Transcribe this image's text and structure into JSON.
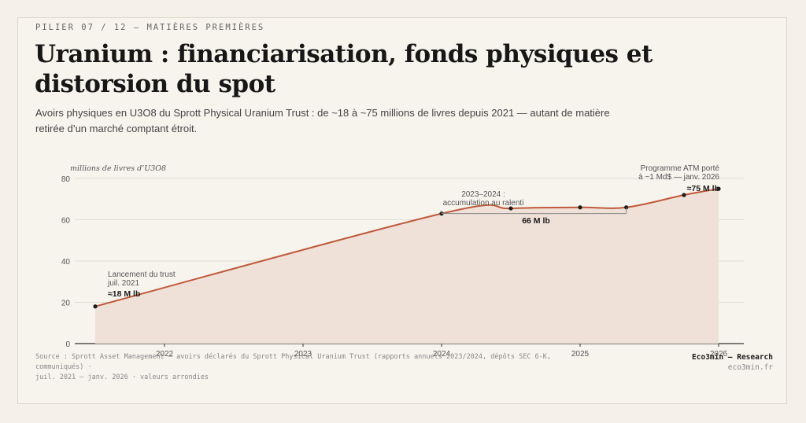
{
  "header": {
    "kicker": "PILIER 07 / 12 — MATIÈRES PREMIÈRES",
    "title": "Uranium : financiarisation, fonds physiques et distorsion du spot",
    "subtitle": "Avoirs physiques en U3O8 du Sprott Physical Uranium Trust : de ~18 à ~75 millions de livres depuis 2021 — autant de matière retirée d’un marché comptant étroit."
  },
  "chart_data": {
    "type": "area",
    "ylabel": "millions de livres d’U3O8",
    "ylim": [
      0,
      80
    ],
    "yticks": [
      0,
      20,
      40,
      60,
      80
    ],
    "xticks": [
      "2022",
      "2023",
      "2024",
      "2025",
      "2026"
    ],
    "series": [
      {
        "x": [
          "2021-07",
          "2024-01",
          "2024-07",
          "2025-01",
          "2025-05",
          "2025-10",
          "2026-01"
        ],
        "values": [
          18,
          63,
          65.5,
          66,
          66,
          72,
          75
        ]
      }
    ],
    "colors": {
      "line": "#bf5a3a",
      "fill": "#efe1d8",
      "grid": "#e2ddd5",
      "axis": "#333333"
    },
    "annotations": {
      "launch_line1": "Lancement du trust",
      "launch_line2": "juil. 2021",
      "launch_value": "≈18 M lb",
      "plateau_line1": "2023–2024 :",
      "plateau_line2": "accumulation au ralenti",
      "plateau_value": "66 M lb",
      "atm_line1": "Programme ATM porté",
      "atm_line2": "à ~1 Md$ — janv. 2026",
      "atm_value": "≈75 M lb"
    }
  },
  "footer": {
    "source_line1": "Source : Sprott Asset Management — avoirs déclarés du Sprott Physical Uranium Trust (rapports annuels 2023/2024, dépôts SEC 6-K, communiqués) ·",
    "source_line2": "juil. 2021 – janv. 2026 · valeurs arrondies",
    "brand": "Eco3min — Research",
    "url": "eco3min.fr"
  }
}
